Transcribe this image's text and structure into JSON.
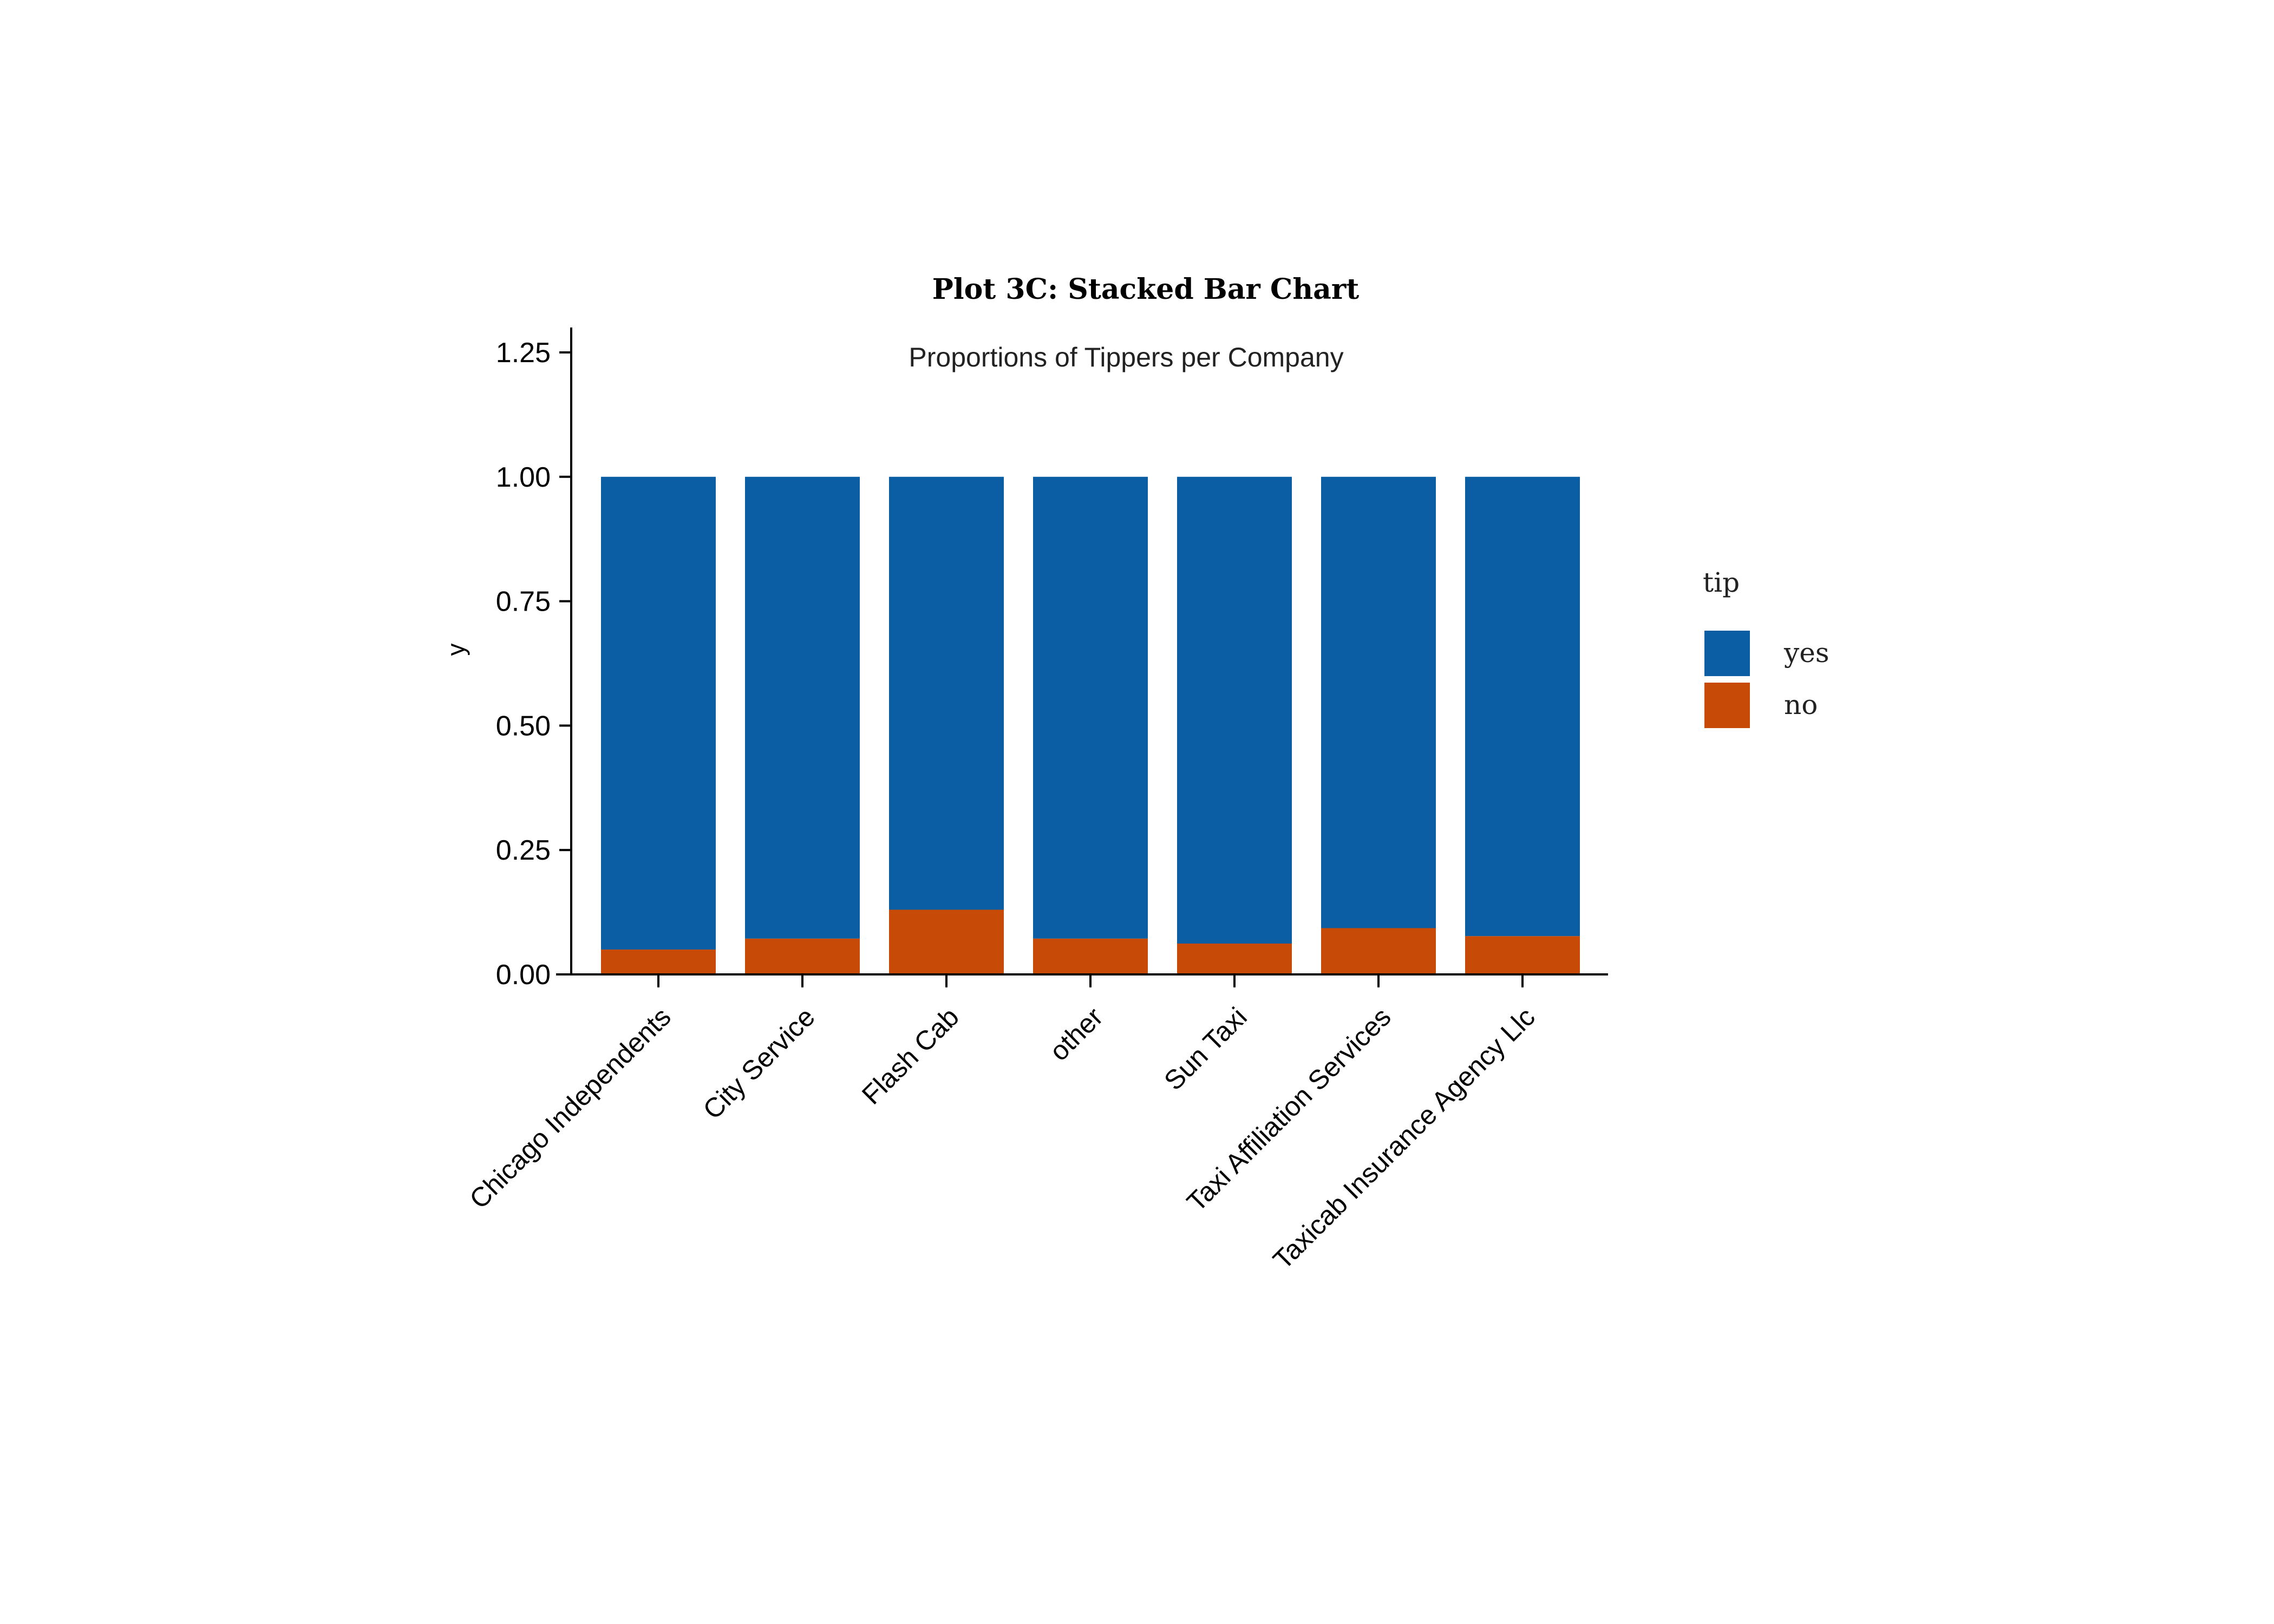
{
  "chart_data": {
    "type": "bar",
    "stacked": true,
    "title": "Plot 3C: Stacked Bar Chart",
    "subtitle": "Proportions of Tippers per Company",
    "xlabel": "",
    "ylabel": "y",
    "ylim": [
      0,
      1.3
    ],
    "yticks": [
      "0.00",
      "0.25",
      "0.50",
      "0.75",
      "1.00",
      "1.25"
    ],
    "categories": [
      "Chicago Independents",
      "City Service",
      "Flash Cab",
      "other",
      "Sun Taxi",
      "Taxi Affiliation Services",
      "Taxicab Insurance Agency Llc"
    ],
    "series": [
      {
        "name": "no",
        "color": "#C74A07",
        "values": [
          0.05,
          0.072,
          0.13,
          0.072,
          0.062,
          0.093,
          0.077
        ]
      },
      {
        "name": "yes",
        "color": "#0B5EA3",
        "values": [
          0.95,
          0.928,
          0.87,
          0.928,
          0.938,
          0.907,
          0.923
        ]
      }
    ],
    "legend": {
      "title": "tip",
      "placement": "right",
      "entries": [
        {
          "label": "yes",
          "color": "#0B5EA3"
        },
        {
          "label": "no",
          "color": "#C74A07"
        }
      ]
    },
    "grid": false
  }
}
